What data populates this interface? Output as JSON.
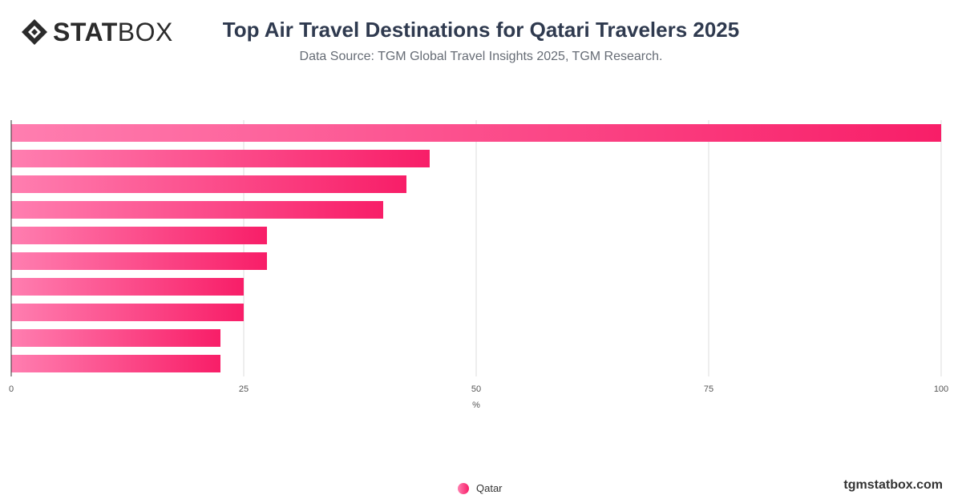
{
  "brand": {
    "logo_bold": "STAT",
    "logo_light": "BOX",
    "logo_icon": "diamond-logo-icon",
    "url": "tgmstatbox.com"
  },
  "header": {
    "title": "Top Air Travel Destinations for Qatari Travelers 2025",
    "subtitle": "Data Source: TGM Global Travel Insights 2025, TGM Research."
  },
  "colors": {
    "bar_start": "#ff7eb0",
    "bar_end": "#f81e68",
    "grid": "#dddddd",
    "axis": "#333333"
  },
  "legend": {
    "label": "Qatar"
  },
  "chart_data": {
    "type": "bar",
    "orientation": "horizontal",
    "categories": [
      "",
      "",
      "",
      "",
      "",
      "",
      "",
      "",
      "",
      ""
    ],
    "series": [
      {
        "name": "Qatar",
        "values": [
          100,
          45,
          42.5,
          40,
          27.5,
          27.5,
          25,
          25,
          22.5,
          22.5
        ]
      }
    ],
    "xlabel": "%",
    "xlim": [
      0,
      100
    ],
    "xticks": [
      0,
      25,
      50,
      75,
      100
    ],
    "grid": true,
    "legend_position": "bottom-center"
  }
}
